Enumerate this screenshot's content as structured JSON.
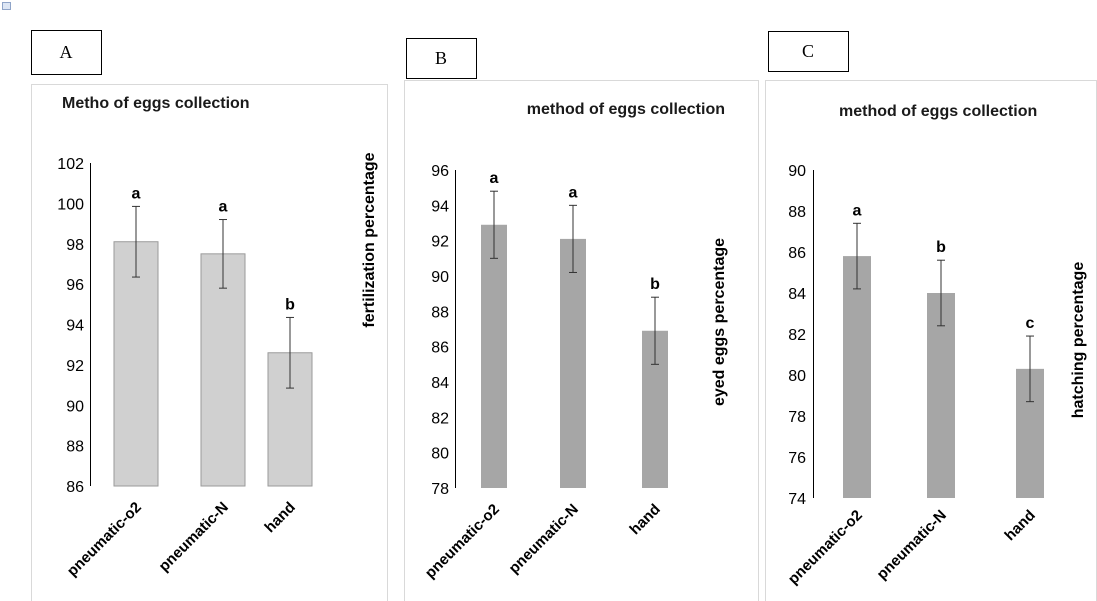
{
  "chart_data": [
    {
      "panel_label": "A",
      "type": "bar",
      "title": "Metho of eggs collection",
      "ylabel": "fertilization percentage",
      "xlabel": "",
      "categories": [
        "pneumatic-o2",
        "pneumatic-N",
        "hand"
      ],
      "values": [
        98.1,
        97.5,
        92.6
      ],
      "errors": [
        1.75,
        1.7,
        1.75
      ],
      "letters": [
        "a",
        "a",
        "b"
      ],
      "ylim": [
        86,
        102
      ],
      "yticks": [
        86,
        88,
        90,
        92,
        94,
        96,
        98,
        100,
        102
      ],
      "grid": false,
      "bar_color": "#d0d0d0"
    },
    {
      "panel_label": "B",
      "type": "bar",
      "title": "method of eggs collection",
      "ylabel": "eyed eggs percentage",
      "xlabel": "",
      "categories": [
        "pneumatic-o2",
        "pneumatic-N",
        "hand"
      ],
      "values": [
        92.9,
        92.1,
        86.9
      ],
      "errors": [
        1.9,
        1.9,
        1.9
      ],
      "letters": [
        "a",
        "a",
        "b"
      ],
      "ylim": [
        78,
        96
      ],
      "yticks": [
        78,
        80,
        82,
        84,
        86,
        88,
        90,
        92,
        94,
        96
      ],
      "grid": false,
      "bar_color": "#a6a6a6"
    },
    {
      "panel_label": "C",
      "type": "bar",
      "title": "method of eggs collection",
      "ylabel": "hatching percentage",
      "xlabel": "",
      "categories": [
        "pneumatic-o2",
        "pneumatic-N",
        "hand"
      ],
      "values": [
        85.8,
        84.0,
        80.3
      ],
      "errors": [
        1.6,
        1.6,
        1.6
      ],
      "letters": [
        "a",
        "b",
        "c"
      ],
      "ylim": [
        74,
        90
      ],
      "yticks": [
        74,
        76,
        78,
        80,
        82,
        84,
        86,
        88,
        90
      ],
      "grid": false,
      "bar_color": "#a6a6a6"
    }
  ]
}
